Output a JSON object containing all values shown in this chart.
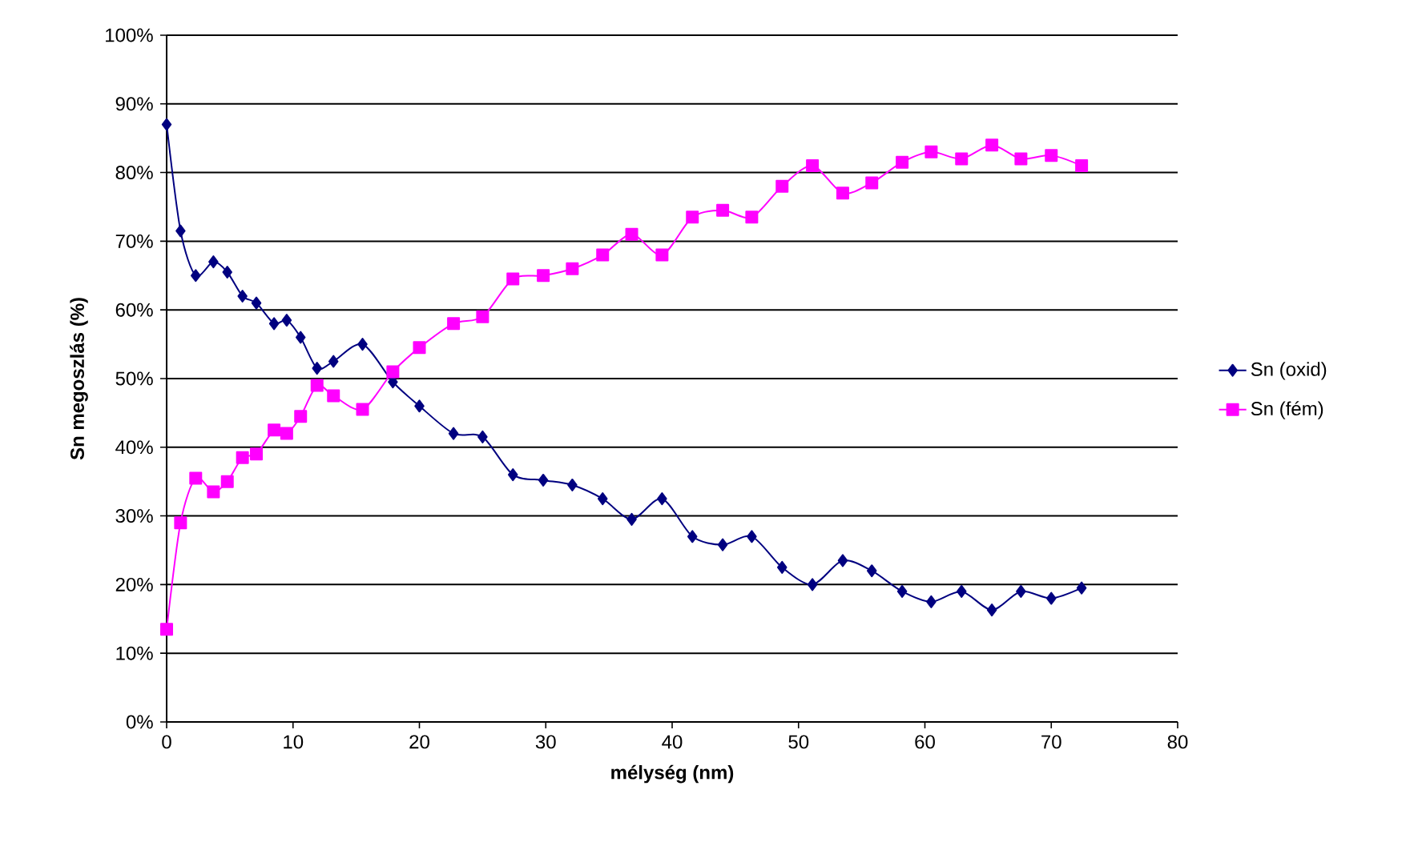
{
  "chart_data": {
    "type": "line",
    "xlabel": "mélység (nm)",
    "ylabel": "Sn megoszlás (%)",
    "xlim": [
      0,
      80
    ],
    "xticks": [
      0,
      10,
      20,
      30,
      40,
      50,
      60,
      70,
      80
    ],
    "ylim": [
      0,
      100
    ],
    "yticks": [
      {
        "value": 0,
        "label": "0%"
      },
      {
        "value": 10,
        "label": "10%"
      },
      {
        "value": 20,
        "label": "20%"
      },
      {
        "value": 30,
        "label": "30%"
      },
      {
        "value": 40,
        "label": "40%"
      },
      {
        "value": 50,
        "label": "50%"
      },
      {
        "value": 60,
        "label": "60%"
      },
      {
        "value": 70,
        "label": "70%"
      },
      {
        "value": 80,
        "label": "80%"
      },
      {
        "value": 90,
        "label": "90%"
      },
      {
        "value": 100,
        "label": "100%"
      }
    ],
    "grid": "y",
    "legend": "right",
    "x": [
      0,
      1.1,
      2.3,
      3.7,
      4.8,
      6.0,
      7.1,
      8.5,
      9.5,
      10.6,
      11.9,
      13.2,
      15.5,
      17.9,
      20.0,
      22.7,
      25.0,
      27.4,
      29.8,
      32.1,
      34.5,
      36.8,
      39.2,
      41.6,
      44.0,
      46.3,
      48.7,
      51.1,
      53.5,
      55.8,
      58.2,
      60.5,
      62.9,
      65.3,
      67.6,
      70.0,
      72.4
    ],
    "series": [
      {
        "name": "Sn (oxid)",
        "color": "#000080",
        "marker": "diamond",
        "values": [
          87,
          71.5,
          65,
          67,
          65.5,
          62,
          61,
          58,
          58.5,
          56,
          51.5,
          52.5,
          55,
          49.5,
          46,
          42,
          41.5,
          36,
          35.2,
          34.5,
          32.5,
          29.5,
          32.5,
          27,
          25.8,
          27,
          22.5,
          20,
          23.5,
          22,
          19,
          17.5,
          19,
          16.3,
          19,
          18,
          19.5
        ]
      },
      {
        "name": "Sn (fém)",
        "color": "#ff00ff",
        "marker": "square",
        "values": [
          13.5,
          29,
          35.5,
          33.5,
          35,
          38.5,
          39,
          42.5,
          42,
          44.5,
          49,
          47.5,
          45.5,
          51,
          54.5,
          58,
          59,
          64.5,
          65,
          66,
          68,
          71,
          68,
          73.5,
          74.5,
          73.5,
          78,
          81,
          77,
          78.5,
          81.5,
          83,
          82,
          84,
          82,
          82.5,
          81
        ]
      }
    ]
  }
}
